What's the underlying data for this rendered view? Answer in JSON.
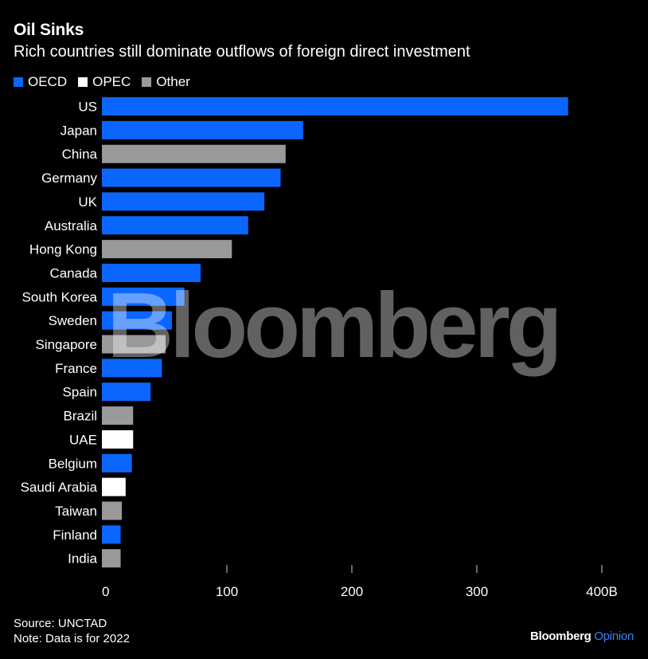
{
  "title": "Oil Sinks",
  "subtitle": "Rich countries still dominate outflows of foreign direct investment",
  "legend": [
    {
      "label": "OECD",
      "color": "#0b66ff"
    },
    {
      "label": "OPEC",
      "color": "#ffffff"
    },
    {
      "label": "Other",
      "color": "#999999"
    }
  ],
  "source": "Source: UNCTAD",
  "note": "Note: Data is for 2022",
  "brand": {
    "name": "Bloomberg",
    "section": "Opinion"
  },
  "watermark": "Bloomberg",
  "chart_data": {
    "type": "bar",
    "orientation": "horizontal",
    "categories": [
      "US",
      "Japan",
      "China",
      "Germany",
      "UK",
      "Australia",
      "Hong Kong",
      "Canada",
      "South Korea",
      "Sweden",
      "Singapore",
      "France",
      "Spain",
      "Brazil",
      "UAE",
      "Belgium",
      "Saudi Arabia",
      "Taiwan",
      "Finland",
      "India"
    ],
    "values": [
      373,
      161,
      147,
      143,
      130,
      117,
      104,
      79,
      66,
      56,
      51,
      48,
      39,
      25,
      25,
      24,
      19,
      16,
      15,
      15
    ],
    "groups": [
      "OECD",
      "OECD",
      "Other",
      "OECD",
      "OECD",
      "OECD",
      "Other",
      "OECD",
      "OECD",
      "OECD",
      "Other",
      "OECD",
      "OECD",
      "Other",
      "OPEC",
      "OECD",
      "OPEC",
      "Other",
      "OECD",
      "Other"
    ],
    "xlim": [
      0,
      400
    ],
    "xticks": [
      0,
      100,
      200,
      300,
      400
    ],
    "xtick_labels": [
      "0",
      "100",
      "200",
      "300",
      "400B"
    ],
    "grid": false,
    "legend_position": "top-left"
  }
}
